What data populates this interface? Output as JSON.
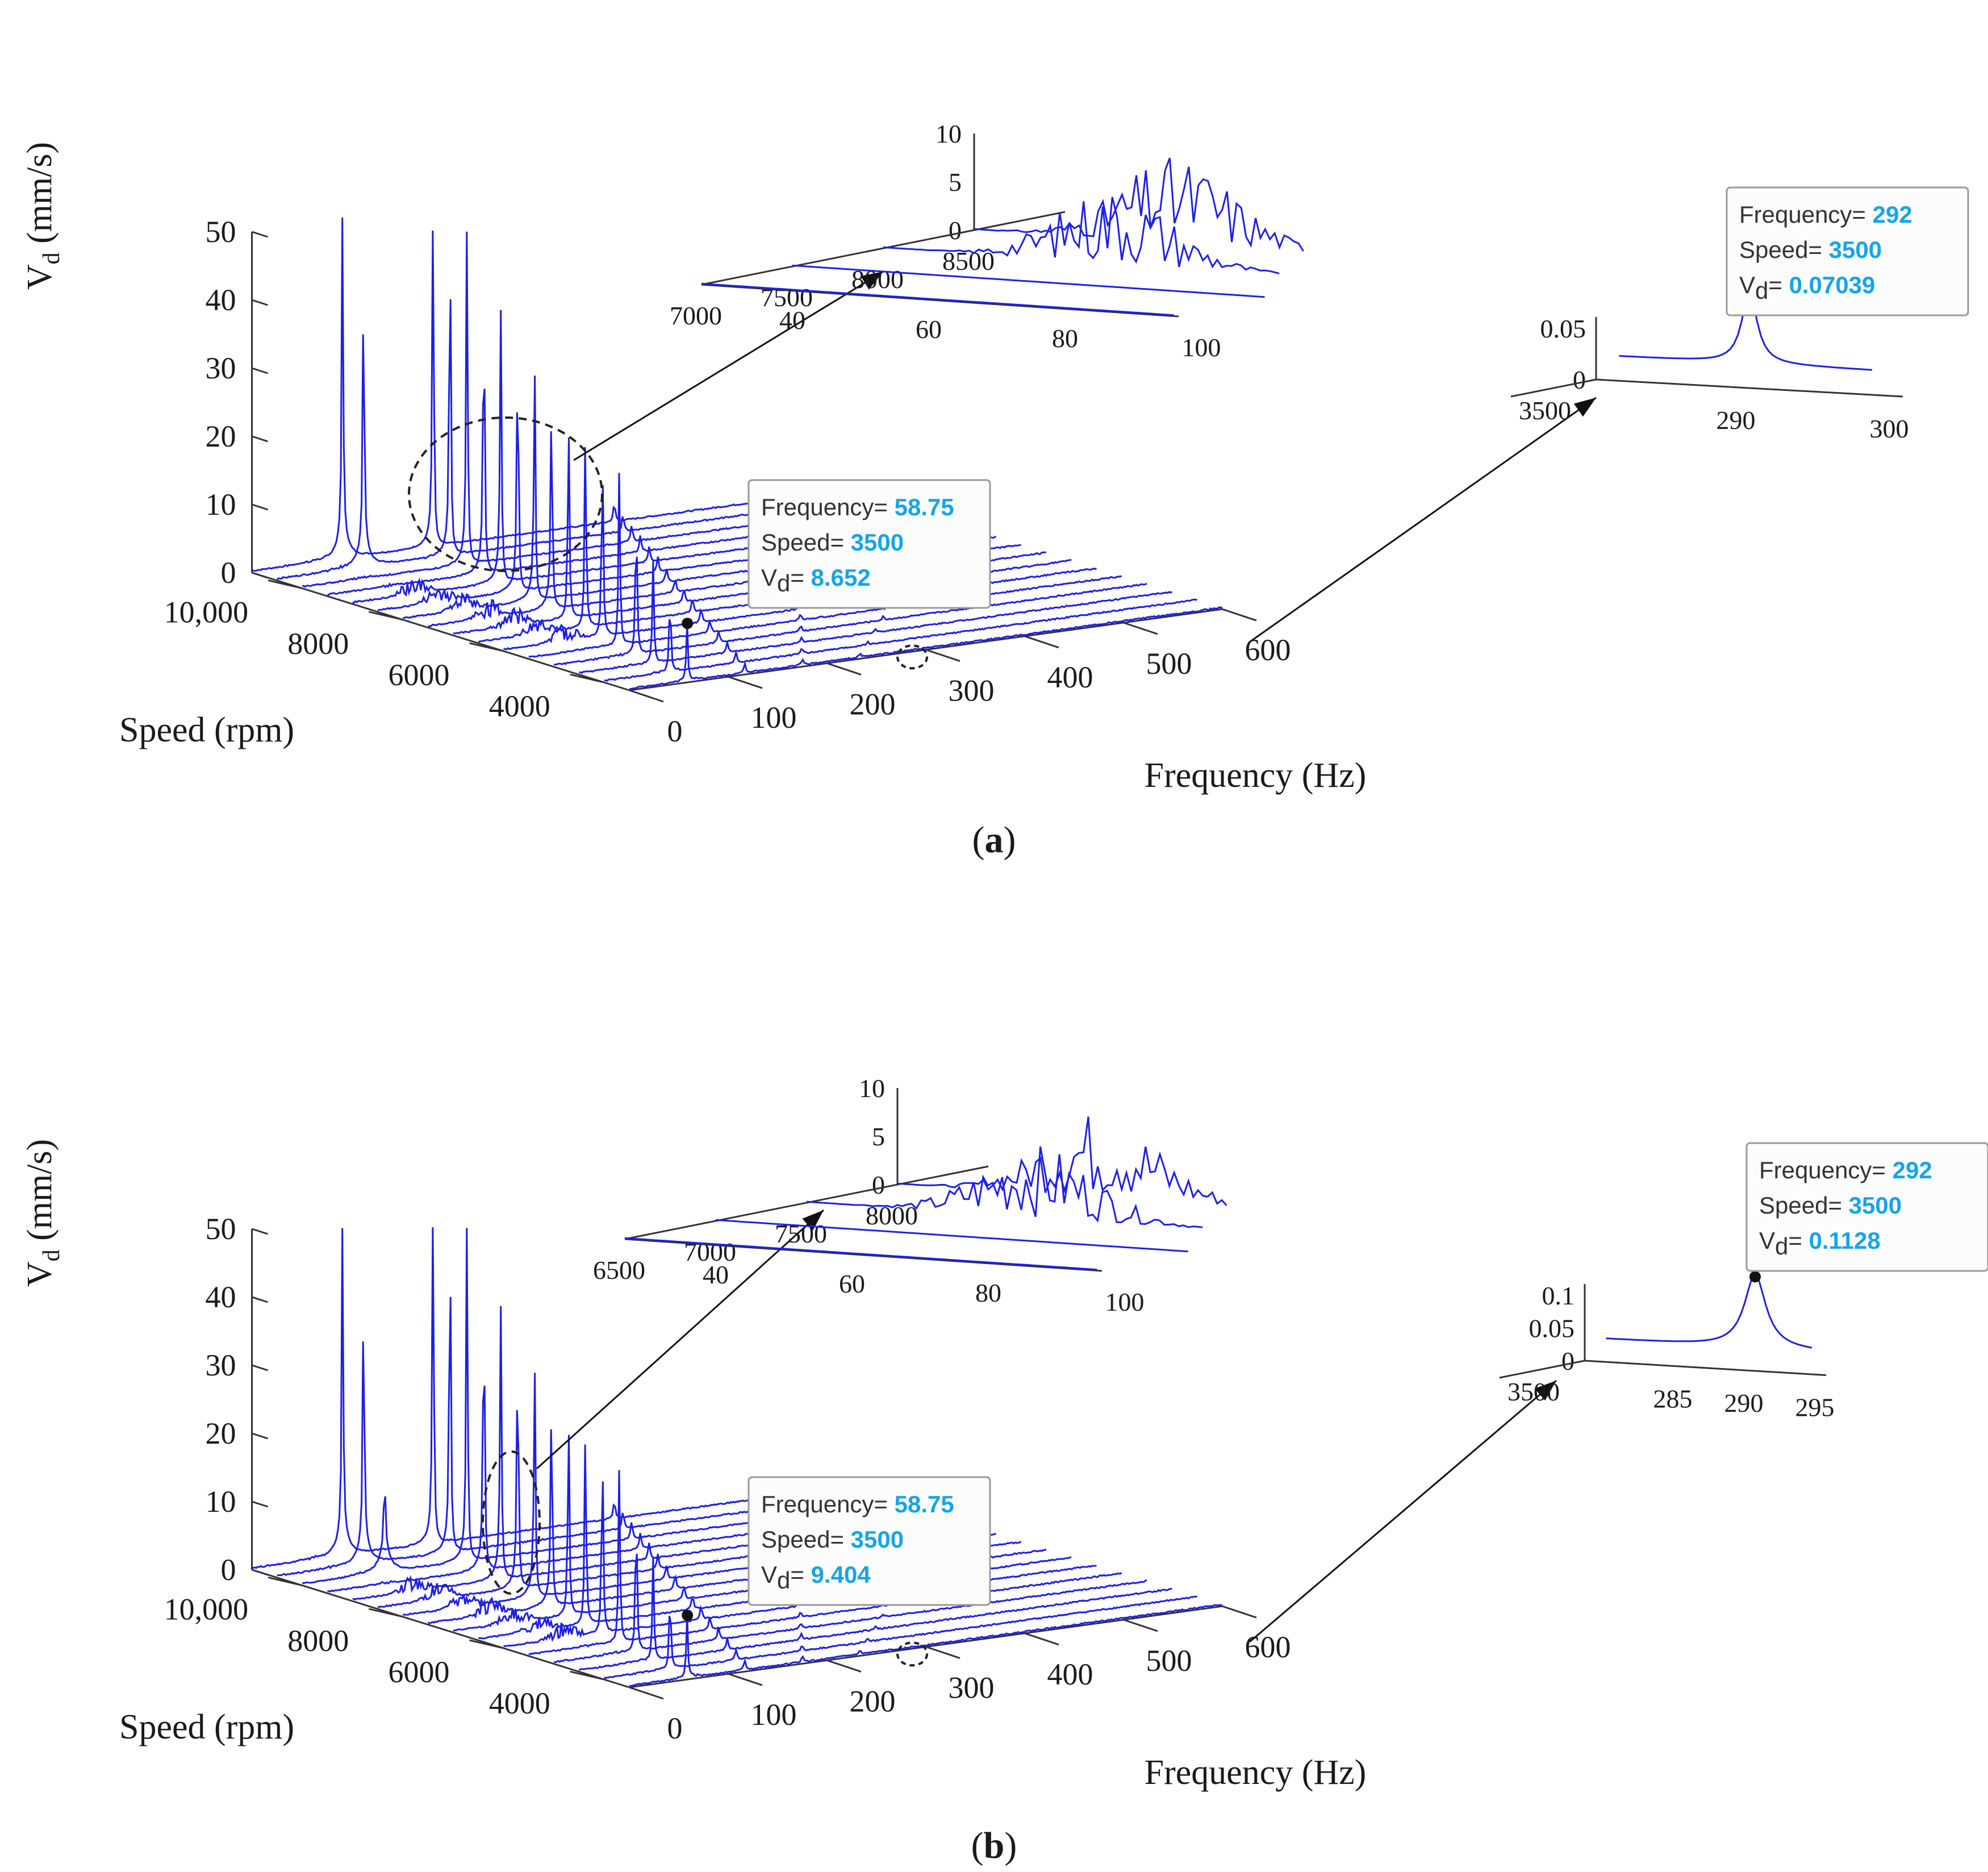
{
  "chart_data": [
    {
      "panel": "a",
      "type": "waterfall",
      "axes": {
        "frequency": {
          "label": "Frequency (Hz)",
          "ticks": [
            "0",
            "100",
            "200",
            "300",
            "400",
            "500",
            "600"
          ],
          "range": [
            0,
            600
          ]
        },
        "speed": {
          "label": "Speed (rpm)",
          "ticks": [
            "4000",
            "6000",
            "8000",
            "10,000"
          ],
          "range": [
            3500,
            11000
          ]
        },
        "vd": {
          "label_main": "V",
          "label_sub": "d",
          "label_unit": " (mm/s)",
          "ticks": [
            "0",
            "10",
            "20",
            "30",
            "40",
            "50"
          ],
          "range": [
            0,
            50
          ]
        }
      },
      "speeds": [
        3500,
        4000,
        4500,
        5000,
        5500,
        6000,
        6500,
        7000,
        7500,
        8000,
        8500,
        9000,
        9500,
        10000,
        10500,
        11000
      ],
      "peaks_1x_Vd": [
        8.65,
        12,
        15,
        22,
        26,
        29,
        30,
        30,
        31,
        34,
        37,
        40,
        42,
        48,
        49,
        50
      ],
      "peaks_half_Vd": [
        0,
        0,
        0,
        0,
        0,
        0,
        0,
        0,
        0,
        0,
        0,
        0,
        0,
        0,
        42,
        48
      ],
      "inset_low": {
        "freq_ticks": [
          "40",
          "60",
          "80",
          "100"
        ],
        "speed_ticks": [
          "7000",
          "7500",
          "8000",
          "8500"
        ],
        "vd_ticks": [
          "0",
          "5",
          "10"
        ]
      },
      "inset_high": {
        "freq_ticks": [
          "290",
          "300"
        ],
        "speed_ticks": [
          "3500"
        ],
        "vd_ticks": [
          "0",
          "0.05"
        ]
      },
      "tip_main": {
        "l1": "Frequency= ",
        "v1": "58.75",
        "l2": "Speed= ",
        "v2": "3500",
        "l3m": "V",
        "l3s": "d",
        "l3e": "= ",
        "v3": "8.652"
      },
      "tip_inset": {
        "l1": "Frequency= ",
        "v1": "292",
        "l2": "Speed= ",
        "v2": "3500",
        "l3m": "V",
        "l3s": "d",
        "l3e": "= ",
        "v3": "0.07039"
      },
      "caption": "(a)",
      "caption_open": "(",
      "caption_letter": "a",
      "caption_close": ")"
    },
    {
      "panel": "b",
      "type": "waterfall",
      "axes": {
        "frequency": {
          "label": "Frequency (Hz)",
          "ticks": [
            "0",
            "100",
            "200",
            "300",
            "400",
            "500",
            "600"
          ],
          "range": [
            0,
            600
          ]
        },
        "speed": {
          "label": "Speed (rpm)",
          "ticks": [
            "4000",
            "6000",
            "8000",
            "10,000"
          ],
          "range": [
            3500,
            11000
          ]
        },
        "vd": {
          "label_main": "V",
          "label_sub": "d",
          "label_unit": " (mm/s)",
          "ticks": [
            "0",
            "10",
            "20",
            "30",
            "40",
            "50"
          ],
          "range": [
            0,
            50
          ]
        }
      },
      "speeds": [
        3500,
        4000,
        4500,
        5000,
        5500,
        6000,
        6500,
        7000,
        7500,
        8000,
        8500,
        9000,
        9500,
        10000,
        10500,
        11000
      ],
      "peaks_1x_Vd": [
        9.4,
        12,
        15,
        22,
        26,
        29,
        30,
        30,
        31,
        34,
        37,
        40,
        42,
        48,
        49,
        50
      ],
      "peaks_half_Vd": [
        0,
        0,
        0,
        0,
        0,
        0,
        0,
        0,
        0,
        0,
        0,
        0,
        0,
        12,
        40,
        46
      ],
      "inset_low": {
        "freq_ticks": [
          "40",
          "60",
          "80",
          "100"
        ],
        "speed_ticks": [
          "6500",
          "7000",
          "7500",
          "8000"
        ],
        "vd_ticks": [
          "0",
          "5",
          "10"
        ]
      },
      "inset_high": {
        "freq_ticks": [
          "285",
          "290",
          "295"
        ],
        "speed_ticks": [
          "3500"
        ],
        "vd_ticks": [
          "0",
          "0.05",
          "0.1"
        ]
      },
      "tip_main": {
        "l1": "Frequency= ",
        "v1": "58.75",
        "l2": "Speed= ",
        "v2": "3500",
        "l3m": "V",
        "l3s": "d",
        "l3e": "= ",
        "v3": "9.404"
      },
      "tip_inset": {
        "l1": "Frequency= ",
        "v1": "292",
        "l2": "Speed= ",
        "v2": "3500",
        "l3m": "V",
        "l3s": "d",
        "l3e": "= ",
        "v3": "0.1128"
      },
      "caption": "(b)",
      "caption_open": "(",
      "caption_letter": "b",
      "caption_close": ")"
    }
  ]
}
